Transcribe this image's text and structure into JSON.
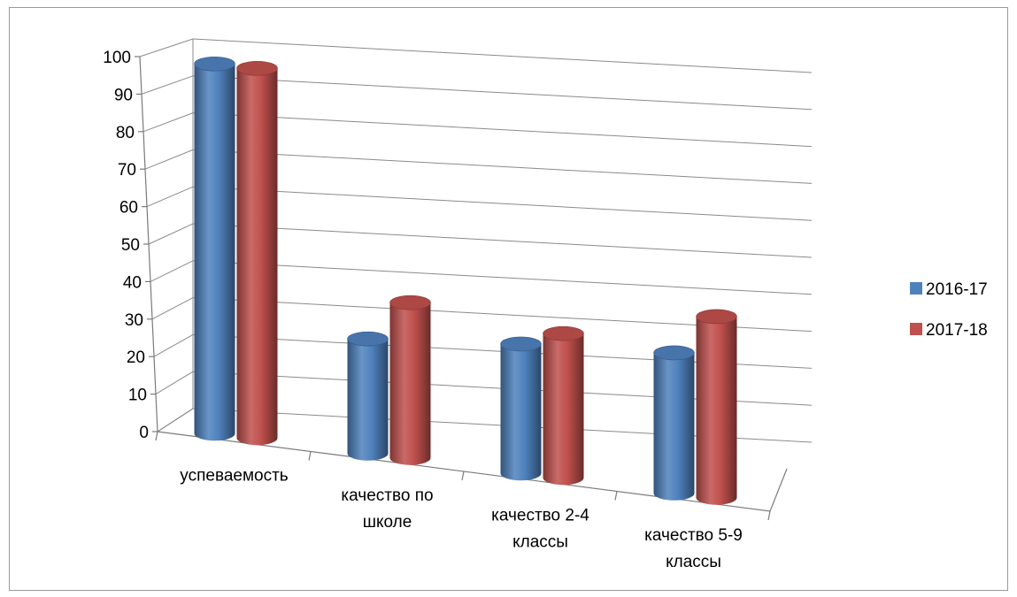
{
  "chart_data": {
    "type": "bar",
    "style": "3d-cylinder",
    "categories": [
      [
        "успеваемость"
      ],
      [
        "качество по",
        "школе"
      ],
      [
        "качество 2-4",
        "классы"
      ],
      [
        "качество 5-9",
        "классы"
      ]
    ],
    "series": [
      {
        "name": "2016-17",
        "color": "#4F81BD",
        "values": [
          100,
          31,
          35,
          38
        ]
      },
      {
        "name": "2017-18",
        "color": "#C0504D",
        "values": [
          100,
          42,
          39,
          49
        ]
      }
    ],
    "ylim": [
      0,
      100
    ],
    "yticks": [
      "0",
      "10",
      "20",
      "30",
      "40",
      "50",
      "60",
      "70",
      "80",
      "90",
      "100"
    ],
    "grid": true,
    "legend": "right"
  }
}
